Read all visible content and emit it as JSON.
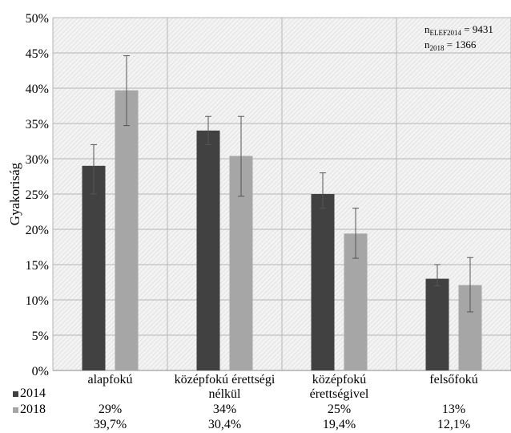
{
  "chart_data": {
    "type": "bar",
    "title": "",
    "ylabel": "Gyakoriság",
    "ylim": [
      0,
      50
    ],
    "ytick_step": 5,
    "ytick_suffix": "%",
    "grid": true,
    "categories": [
      [
        "alapfokú"
      ],
      [
        "középfokú érettségi",
        "nélkül"
      ],
      [
        "középfokú",
        "érettségivel"
      ],
      [
        "felsőfokú"
      ]
    ],
    "series": [
      {
        "name": "2014",
        "color": "#414141",
        "values": [
          29,
          34,
          25,
          13
        ],
        "err_low": [
          25,
          32,
          23,
          12
        ],
        "err_high": [
          32,
          36,
          28,
          15
        ],
        "labels": [
          "29%",
          "34%",
          "25%",
          "13%"
        ]
      },
      {
        "name": "2018",
        "color": "#a6a6a6",
        "values": [
          39.7,
          30.4,
          19.4,
          12.1
        ],
        "err_low": [
          34.7,
          24.7,
          15.9,
          8.3
        ],
        "err_high": [
          44.6,
          36,
          23,
          16
        ],
        "labels": [
          "39,7%",
          "30,4%",
          "19,4%",
          "12,1%"
        ]
      }
    ],
    "annotation": {
      "line1": {
        "n": "n",
        "sub": "ELEF2014",
        "value": " = 9431"
      },
      "line2": {
        "n": "n",
        "sub": "2018",
        "value": " = 1366"
      }
    }
  }
}
